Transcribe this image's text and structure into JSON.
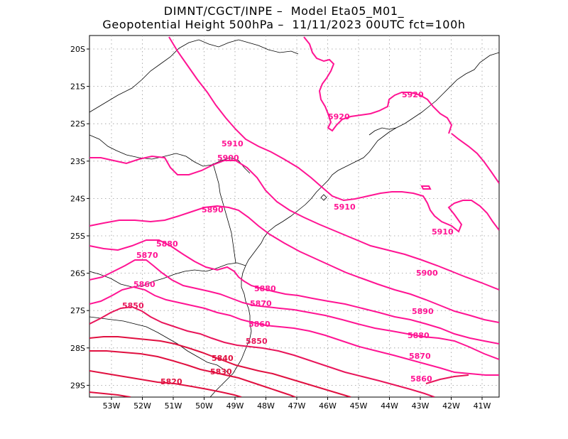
{
  "header": {
    "line1": "DIMNT/CGCT/INPE –  Model Eta05_M01_",
    "line2": "Geopotential Height 500hPa –  11/11/2023 00UTC fct=100h"
  },
  "axes": {
    "lat_labels": [
      "20S",
      "21S",
      "22S",
      "23S",
      "24S",
      "25S",
      "26S",
      "27S",
      "28S",
      "29S"
    ],
    "lon_labels": [
      "53W",
      "52W",
      "51W",
      "50W",
      "49W",
      "48W",
      "47W",
      "46W",
      "45W",
      "44W",
      "43W",
      "42W",
      "41W"
    ],
    "grid": "dotted"
  },
  "contours": {
    "color_high": "#ff1493",
    "color_low": "#e01040",
    "labels": [
      {
        "text": "5920",
        "id": "5920-a"
      },
      {
        "text": "5920",
        "id": "5920-b"
      },
      {
        "text": "5910",
        "id": "5910-a"
      },
      {
        "text": "5910",
        "id": "5910-b"
      },
      {
        "text": "5910",
        "id": "5910-c"
      },
      {
        "text": "5900",
        "id": "5900-a"
      },
      {
        "text": "5900",
        "id": "5900-b"
      },
      {
        "text": "5890",
        "id": "5890-a"
      },
      {
        "text": "5890",
        "id": "5890-b"
      },
      {
        "text": "5880",
        "id": "5880-a"
      },
      {
        "text": "5880",
        "id": "5880-b"
      },
      {
        "text": "5880",
        "id": "5880-c"
      },
      {
        "text": "5870",
        "id": "5870-a"
      },
      {
        "text": "5870",
        "id": "5870-b"
      },
      {
        "text": "5870",
        "id": "5870-c"
      },
      {
        "text": "5860",
        "id": "5860-a"
      },
      {
        "text": "5860",
        "id": "5860-b"
      },
      {
        "text": "5860",
        "id": "5860-c"
      },
      {
        "text": "5850",
        "id": "5850-a"
      },
      {
        "text": "5850",
        "id": "5850-b"
      },
      {
        "text": "5840",
        "id": "5840-a"
      },
      {
        "text": "5830",
        "id": "5830-a"
      },
      {
        "text": "5820",
        "id": "5820-a"
      }
    ]
  }
}
